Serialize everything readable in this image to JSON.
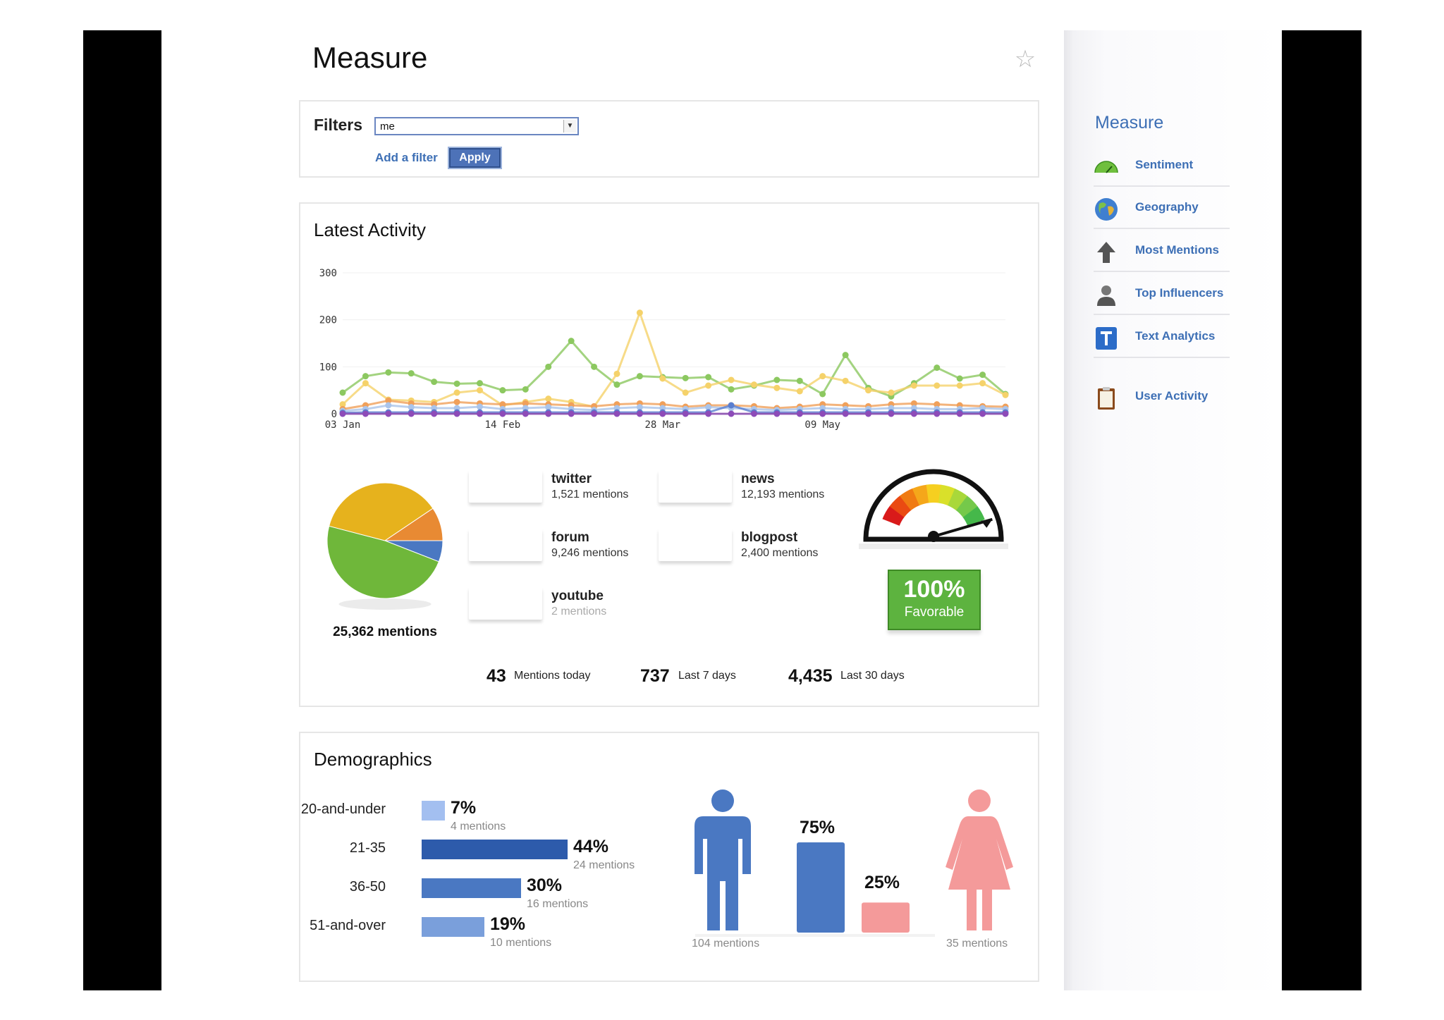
{
  "page": {
    "title": "Measure"
  },
  "filters": {
    "label": "Filters",
    "selected": "me",
    "add_filter": "Add a filter",
    "apply": "Apply"
  },
  "activity": {
    "title": "Latest Activity",
    "chart_data": {
      "type": "line",
      "y_ticks": [
        "300",
        "200",
        "100",
        "0"
      ],
      "x_ticks": [
        "03 Jan",
        "14 Feb",
        "28 Mar",
        "09 May"
      ],
      "ylim": [
        0,
        300
      ],
      "series": [
        {
          "color": "#8cc860",
          "values": [
            45,
            80,
            88,
            86,
            68,
            64,
            65,
            50,
            52,
            100,
            155,
            100,
            62,
            80,
            78,
            76,
            78,
            52,
            60,
            72,
            70,
            42,
            125,
            55,
            37,
            65,
            98,
            75,
            83,
            42
          ]
        },
        {
          "color": "#f5d26a",
          "values": [
            20,
            65,
            30,
            28,
            25,
            45,
            50,
            18,
            25,
            32,
            25,
            15,
            85,
            215,
            75,
            45,
            60,
            72,
            62,
            55,
            48,
            80,
            70,
            50,
            45,
            60,
            60,
            60,
            65,
            40
          ]
        },
        {
          "color": "#f0a05a",
          "values": [
            10,
            18,
            28,
            22,
            20,
            25,
            22,
            20,
            22,
            20,
            18,
            16,
            20,
            22,
            20,
            15,
            18,
            18,
            16,
            12,
            15,
            20,
            18,
            16,
            20,
            22,
            20,
            18,
            16,
            15
          ]
        },
        {
          "color": "#aac4ea",
          "values": [
            6,
            10,
            18,
            14,
            12,
            12,
            15,
            10,
            12,
            14,
            10,
            8,
            12,
            14,
            12,
            10,
            14,
            12,
            10,
            8,
            10,
            12,
            10,
            10,
            12,
            12,
            10,
            10,
            12,
            10
          ]
        },
        {
          "color": "#5a7ed0",
          "values": [
            2,
            3,
            3,
            3,
            3,
            3,
            3,
            3,
            3,
            3,
            3,
            3,
            3,
            3,
            3,
            3,
            3,
            18,
            3,
            3,
            3,
            3,
            3,
            3,
            3,
            3,
            3,
            3,
            3,
            3
          ]
        },
        {
          "color": "#8d4bb8",
          "values": [
            0,
            0,
            0,
            0,
            0,
            0,
            0,
            0,
            0,
            0,
            0,
            0,
            0,
            0,
            0,
            0,
            0,
            0,
            0,
            0,
            0,
            0,
            0,
            0,
            0,
            0,
            0,
            0,
            0,
            0
          ]
        }
      ]
    },
    "pie": {
      "slices": [
        {
          "label": "twitter",
          "value": 5.9,
          "color": "#4a78c2"
        },
        {
          "label": "news",
          "value": 48.0,
          "color": "#6fb73a"
        },
        {
          "label": "forum",
          "value": 36.4,
          "color": "#e6b21d"
        },
        {
          "label": "blogpost",
          "value": 9.4,
          "color": "#e88a33"
        },
        {
          "label": "youtube",
          "value": 0.0,
          "color": "#cfcfcf"
        }
      ],
      "total": "25,362 mentions"
    },
    "sources": [
      {
        "pct": "5.9%",
        "name": "twitter",
        "count": "1,521 mentions",
        "color": "#4a78c2"
      },
      {
        "pct": "48.0%",
        "name": "news",
        "count": "12,193 mentions",
        "color": "#6fb73a"
      },
      {
        "pct": "36.4%",
        "name": "forum",
        "count": "9,246 mentions",
        "color": "#e6b21d"
      },
      {
        "pct": "9.4%",
        "name": "blogpost",
        "count": "2,400 mentions",
        "color": "#e88a33"
      },
      {
        "pct": "0%",
        "name": "youtube",
        "count": "2 mentions",
        "color": "#cfcfcf"
      }
    ],
    "sentiment": {
      "pct": "100%",
      "label": "Favorable",
      "level": 1.0
    },
    "stats": [
      {
        "num": "43",
        "label": "Mentions today"
      },
      {
        "num": "737",
        "label": "Last 7 days"
      },
      {
        "num": "4,435",
        "label": "Last 30 days"
      }
    ]
  },
  "demographics": {
    "title": "Demographics",
    "ages": [
      {
        "label": "20-and-under",
        "pct": "7%",
        "count": "4 mentions",
        "value": 7,
        "color": "#a3bff0"
      },
      {
        "label": "21-35",
        "pct": "44%",
        "count": "24 mentions",
        "value": 44,
        "color": "#2d5bab"
      },
      {
        "label": "36-50",
        "pct": "30%",
        "count": "16 mentions",
        "value": 30,
        "color": "#4a78c2"
      },
      {
        "label": "51-and-over",
        "pct": "19%",
        "count": "10 mentions",
        "value": 19,
        "color": "#7a9fdb"
      }
    ],
    "gender": {
      "male": {
        "pct": "75%",
        "count": "104 mentions",
        "value": 75,
        "color": "#4a78c2"
      },
      "female": {
        "pct": "25%",
        "count": "35 mentions",
        "value": 25,
        "color": "#f49a9a"
      }
    }
  },
  "sidebar": {
    "title": "Measure",
    "items": [
      {
        "label": "Sentiment",
        "icon": "gauge-icon"
      },
      {
        "label": "Geography",
        "icon": "globe-icon"
      },
      {
        "label": "Most Mentions",
        "icon": "arrow-up-icon"
      },
      {
        "label": "Top Influencers",
        "icon": "person-icon"
      },
      {
        "label": "Text Analytics",
        "icon": "text-t-icon"
      },
      {
        "label": "User Activity",
        "icon": "clipboard-icon"
      }
    ]
  }
}
